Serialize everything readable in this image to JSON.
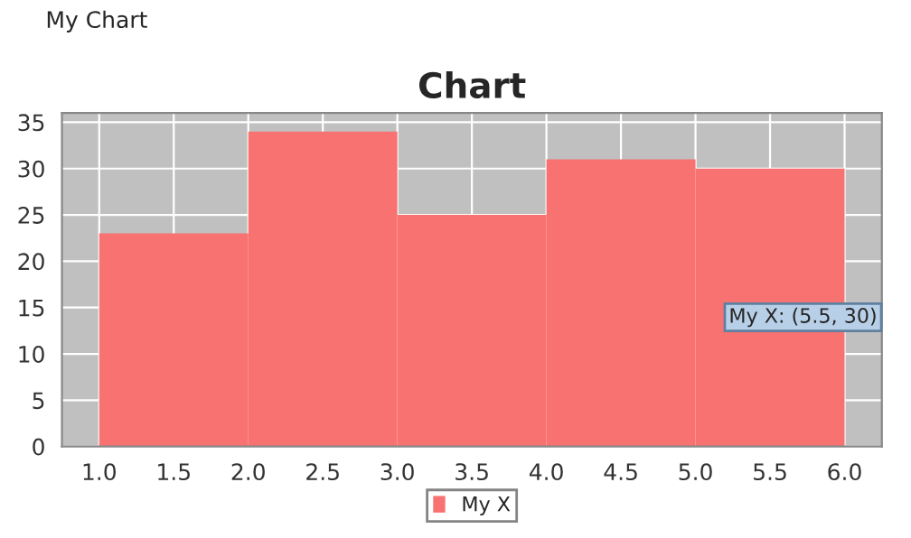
{
  "chart_data": {
    "type": "histogram",
    "title": "Chart",
    "bins": [
      1,
      2,
      3,
      4,
      5,
      6
    ],
    "series": [
      {
        "name": "My X",
        "color": "#f87272",
        "values": [
          23,
          34,
          25,
          31,
          30
        ]
      }
    ],
    "xlim": [
      0.75,
      6.25
    ],
    "ylim": [
      0,
      36
    ],
    "xticks": [
      {
        "value": 1,
        "label": "1.0"
      },
      {
        "value": 1.5,
        "label": "1.5"
      },
      {
        "value": 2,
        "label": "2.0"
      },
      {
        "value": 2.5,
        "label": "2.5"
      },
      {
        "value": 3,
        "label": "3.0"
      },
      {
        "value": 3.5,
        "label": "3.5"
      },
      {
        "value": 4,
        "label": "4.0"
      },
      {
        "value": 4.5,
        "label": "4.5"
      },
      {
        "value": 5,
        "label": "5.0"
      },
      {
        "value": 5.5,
        "label": "5.5"
      },
      {
        "value": 6,
        "label": "6.0"
      }
    ],
    "yticks": [
      0,
      5,
      10,
      15,
      20,
      25,
      30,
      35
    ],
    "grid": true,
    "legend": "bottom",
    "annotations": [
      "My Chart",
      "My X: (5.5, 30)"
    ]
  }
}
